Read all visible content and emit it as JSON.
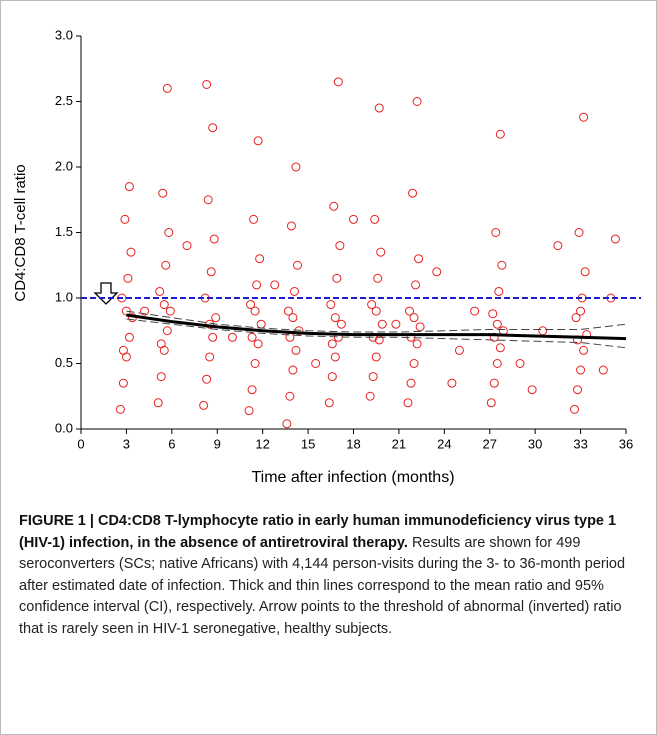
{
  "chart_data": {
    "type": "scatter",
    "x_label": "Time after infection (months)",
    "y_label": "CD4:CD8 T-cell ratio",
    "xlim": [
      0,
      36
    ],
    "ylim": [
      0,
      3
    ],
    "xticks": [
      0,
      3,
      6,
      9,
      12,
      15,
      18,
      21,
      24,
      27,
      30,
      33,
      36
    ],
    "yticks": [
      {
        "value": 0,
        "label": "0.0"
      },
      0.5,
      {
        "value": 1,
        "label": "1.0"
      },
      1.5,
      {
        "value": 2,
        "label": "2.0"
      },
      2.5,
      {
        "value": 3,
        "label": "3.0"
      }
    ],
    "threshold": 1,
    "threshold_color": "#1c1ccf",
    "series": [
      {
        "color": "#e8201e",
        "x": [
          2.6,
          2.8,
          3.0,
          3.2,
          3.4,
          2.7,
          3.1,
          3.3,
          2.9,
          3.2,
          2.8,
          3.0,
          5.1,
          5.3,
          5.5,
          5.7,
          5.9,
          5.2,
          5.6,
          5.8,
          5.4,
          5.7,
          5.3,
          5.5,
          8.1,
          8.3,
          8.5,
          8.7,
          8.9,
          8.2,
          8.6,
          8.8,
          8.4,
          8.7,
          8.3,
          8.5,
          11.1,
          11.3,
          11.5,
          11.7,
          11.9,
          11.2,
          11.6,
          11.8,
          11.4,
          11.7,
          11.3,
          11.5,
          13.6,
          13.8,
          14.0,
          14.2,
          14.4,
          13.7,
          14.1,
          14.3,
          13.9,
          14.2,
          13.8,
          14.0,
          16.4,
          16.6,
          16.8,
          17.0,
          17.2,
          16.5,
          16.9,
          17.1,
          16.7,
          17.0,
          16.6,
          16.8,
          19.1,
          19.3,
          19.5,
          19.7,
          19.9,
          19.2,
          19.6,
          19.8,
          19.4,
          19.7,
          19.3,
          19.5,
          21.6,
          21.8,
          22.0,
          22.2,
          22.4,
          21.7,
          22.1,
          22.3,
          21.9,
          22.2,
          21.8,
          22.0,
          27.1,
          27.3,
          27.5,
          27.7,
          27.9,
          27.2,
          27.6,
          27.8,
          27.4,
          27.7,
          27.3,
          27.5,
          32.6,
          32.8,
          33.0,
          33.2,
          33.4,
          32.7,
          33.1,
          33.3,
          32.9,
          33.2,
          32.8,
          33.0,
          4.2,
          7,
          10,
          12.8,
          15.5,
          18,
          20.8,
          23.5,
          25,
          26,
          29,
          30.5,
          31.5,
          34.5,
          35.3,
          24.5,
          29.8,
          35
        ],
        "y": [
          0.15,
          0.35,
          0.55,
          0.7,
          0.85,
          1.0,
          1.15,
          1.35,
          1.6,
          1.85,
          0.6,
          0.9,
          0.2,
          0.4,
          0.6,
          0.75,
          0.9,
          1.05,
          1.25,
          1.5,
          1.8,
          2.6,
          0.65,
          0.95,
          0.18,
          0.38,
          0.55,
          0.7,
          0.85,
          1.0,
          1.2,
          1.45,
          1.75,
          2.3,
          2.63,
          0.8,
          0.14,
          0.3,
          0.5,
          0.65,
          0.8,
          0.95,
          1.1,
          1.3,
          1.6,
          2.2,
          0.7,
          0.9,
          0.04,
          0.25,
          0.45,
          0.6,
          0.75,
          0.9,
          1.05,
          1.25,
          1.55,
          2.0,
          0.7,
          0.85,
          0.2,
          0.4,
          0.55,
          0.7,
          0.8,
          0.95,
          1.15,
          1.4,
          1.7,
          2.65,
          0.65,
          0.85,
          0.25,
          0.4,
          0.55,
          0.68,
          0.8,
          0.95,
          1.15,
          1.35,
          1.6,
          2.45,
          0.7,
          0.9,
          0.2,
          0.35,
          0.5,
          0.65,
          0.78,
          0.9,
          1.1,
          1.3,
          1.8,
          2.5,
          0.7,
          0.85,
          0.2,
          0.35,
          0.5,
          0.62,
          0.75,
          0.88,
          1.05,
          1.25,
          1.5,
          2.25,
          0.7,
          0.8,
          0.15,
          0.3,
          0.45,
          0.6,
          0.72,
          0.85,
          1.0,
          1.2,
          1.5,
          2.38,
          0.68,
          0.9,
          0.9,
          1.4,
          0.7,
          1.1,
          0.5,
          1.6,
          0.8,
          1.2,
          0.6,
          0.9,
          0.5,
          0.75,
          1.4,
          0.45,
          1.45,
          0.35,
          0.3,
          1.0
        ]
      }
    ],
    "mean_line": {
      "color": "#000000",
      "x": [
        3,
        6,
        9,
        12,
        15,
        18,
        21,
        24,
        27,
        30,
        33,
        36
      ],
      "y": [
        0.87,
        0.82,
        0.78,
        0.75,
        0.73,
        0.72,
        0.72,
        0.72,
        0.72,
        0.71,
        0.7,
        0.69
      ]
    },
    "ci_lower": {
      "x": [
        3,
        6,
        9,
        12,
        15,
        18,
        21,
        24,
        27,
        30,
        33,
        36
      ],
      "y": [
        0.84,
        0.8,
        0.76,
        0.73,
        0.71,
        0.7,
        0.7,
        0.69,
        0.68,
        0.67,
        0.66,
        0.62
      ]
    },
    "ci_upper": {
      "x": [
        3,
        6,
        9,
        12,
        15,
        18,
        21,
        24,
        27,
        30,
        33,
        36
      ],
      "y": [
        0.9,
        0.85,
        0.8,
        0.77,
        0.75,
        0.74,
        0.74,
        0.75,
        0.76,
        0.76,
        0.76,
        0.8
      ]
    }
  },
  "caption": {
    "heading": "FIGURE 1 | CD4:CD8 T-lymphocyte ratio in early human immunodeficiency virus type 1 (HIV-1) infection, in the absence of antiretroviral therapy.",
    "body": "Results are shown for 499 seroconverters (SCs; native Africans) with 4,144 person-visits during the 3- to 36-month period after estimated date of infection. Thick and thin lines correspond to the mean ratio and 95% confidence interval (CI), respectively. Arrow points to the threshold of abnormal (inverted) ratio that is rarely seen in HIV-1 seronegative, healthy subjects."
  }
}
